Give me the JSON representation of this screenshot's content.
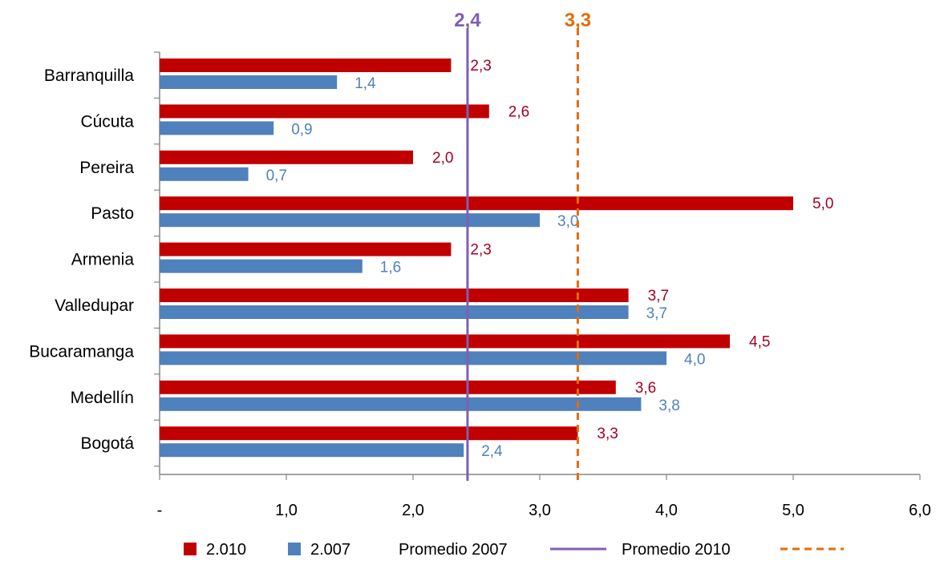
{
  "chart_data": {
    "type": "bar",
    "orientation": "horizontal",
    "categories": [
      "Barranquilla",
      "Cúcuta",
      "Pereira",
      "Pasto",
      "Armenia",
      "Valledupar",
      "Bucaramanga",
      "Medellín",
      "Bogotá"
    ],
    "series": [
      {
        "name": "2.010",
        "color": "#C00000",
        "values": [
          2.3,
          2.6,
          2.0,
          5.0,
          2.3,
          3.7,
          4.5,
          3.6,
          3.3
        ],
        "labels": [
          "2,3",
          "2,6",
          "2,0",
          "5,0",
          "2,3",
          "3,7",
          "4,5",
          "3,6",
          "3,3"
        ]
      },
      {
        "name": "2.007",
        "color": "#4F81BD",
        "values": [
          1.4,
          0.9,
          0.7,
          3.0,
          1.6,
          3.7,
          4.0,
          3.8,
          2.4
        ],
        "labels": [
          "1,4",
          "0,9",
          "0,7",
          "3,0",
          "1,6",
          "3,7",
          "4,0",
          "3,8",
          "2,4"
        ]
      }
    ],
    "reference_lines": [
      {
        "name": "Promedio 2007",
        "value": 2.43,
        "label": "2,4",
        "color": "#7F5FB3",
        "style": "solid"
      },
      {
        "name": "Promedio 2010",
        "value": 3.3,
        "label": "3,3",
        "color": "#E36C09",
        "style": "dashed"
      }
    ],
    "xlim": [
      0,
      6
    ],
    "xticks": [
      0,
      1,
      2,
      3,
      4,
      5,
      6
    ],
    "xtick_labels": [
      "-",
      "1,0",
      "2,0",
      "3,0",
      "4,0",
      "5,0",
      "6,0"
    ],
    "grid": false,
    "legend_position": "bottom"
  }
}
